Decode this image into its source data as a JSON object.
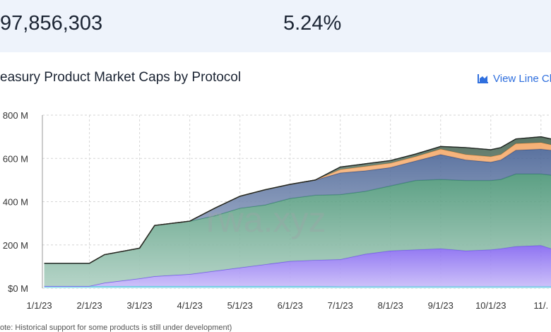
{
  "header": {
    "value": "97,856,303",
    "yield": "5.24%"
  },
  "chart_data": {
    "type": "area",
    "title": "easury Product Market Caps by Protocol",
    "link": "View Line Ch",
    "watermark": "rwa.xyz",
    "note": "ote: Historical support for some products is still under development)",
    "stacked": true,
    "grid": true,
    "x": [
      0.1,
      1.0,
      1.3,
      2.0,
      2.3,
      3.0,
      3.5,
      4.0,
      4.5,
      5.0,
      5.5,
      6.0,
      6.5,
      7.0,
      7.5,
      8.0,
      8.5,
      9.0,
      9.2,
      9.5,
      10.0,
      10.2
    ],
    "xlim": [
      -0.05,
      10.2
    ],
    "xticks": [
      {
        "value": 0,
        "label": "1/1/23"
      },
      {
        "value": 1,
        "label": "2/1/23"
      },
      {
        "value": 2,
        "label": "3/1/23"
      },
      {
        "value": 3,
        "label": "4/1/23"
      },
      {
        "value": 4,
        "label": "5/1/23"
      },
      {
        "value": 5,
        "label": "6/1/23"
      },
      {
        "value": 6,
        "label": "7/1/23"
      },
      {
        "value": 7,
        "label": "8/1/23"
      },
      {
        "value": 8,
        "label": "9/1/23"
      },
      {
        "value": 9,
        "label": "10/1/23"
      },
      {
        "value": 10,
        "label": "11/."
      }
    ],
    "ylim": [
      0,
      800
    ],
    "yticks": [
      {
        "value": 0,
        "label": "$0 M"
      },
      {
        "value": 200,
        "label": "200 M"
      },
      {
        "value": 400,
        "label": "400 M"
      },
      {
        "value": 600,
        "label": "600 M"
      },
      {
        "value": 800,
        "label": "800 M"
      }
    ],
    "series": [
      {
        "color": "#5ec8e0",
        "values": [
          10,
          10,
          10,
          10,
          10,
          10,
          10,
          10,
          10,
          10,
          10,
          8,
          8,
          8,
          8,
          8,
          8,
          8,
          8,
          8,
          8,
          8
        ]
      },
      {
        "color": "#7b5cf0",
        "values": [
          0,
          0,
          15,
          35,
          45,
          55,
          70,
          85,
          100,
          115,
          120,
          125,
          150,
          165,
          170,
          175,
          165,
          170,
          175,
          185,
          190,
          175
        ]
      },
      {
        "color": "#3f8f6e",
        "values": [
          105,
          105,
          130,
          140,
          235,
          245,
          255,
          275,
          275,
          290,
          300,
          300,
          290,
          300,
          320,
          320,
          325,
          320,
          320,
          335,
          330,
          340
        ]
      },
      {
        "color": "#3e5a8f",
        "values": [
          0,
          0,
          0,
          0,
          0,
          0,
          35,
          55,
          70,
          65,
          70,
          100,
          95,
          85,
          90,
          115,
          95,
          85,
          90,
          110,
          115,
          115
        ]
      },
      {
        "color": "#f5a25d",
        "values": [
          0,
          0,
          0,
          0,
          0,
          0,
          0,
          0,
          0,
          0,
          0,
          15,
          20,
          20,
          20,
          25,
          25,
          25,
          25,
          30,
          30,
          25
        ]
      },
      {
        "color": "#3f5e4a",
        "values": [
          0,
          0,
          0,
          0,
          0,
          0,
          0,
          0,
          0,
          0,
          0,
          12,
          12,
          12,
          12,
          12,
          32,
          32,
          32,
          22,
          27,
          27
        ]
      }
    ]
  }
}
